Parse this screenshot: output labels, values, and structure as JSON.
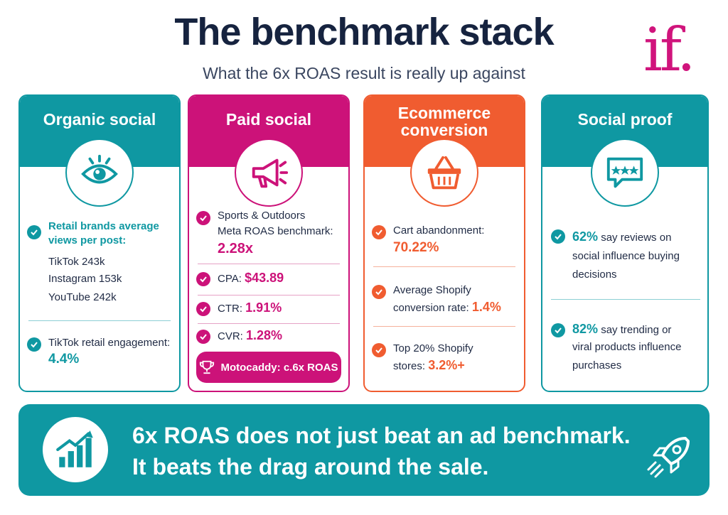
{
  "header": {
    "title": "The benchmark stack",
    "subtitle": "What the 6x ROAS result is really up against",
    "logo": "if."
  },
  "colors": {
    "teal": "#0f98a2",
    "magenta": "#cc1279",
    "orange": "#f05c30",
    "navy": "#16233f"
  },
  "cards": {
    "organic": {
      "title": "Organic social",
      "icon": "eye-icon",
      "views_heading": "Retail brands average views per post:",
      "lines": [
        "TikTok 243k",
        "Instagram 153k",
        "YouTube 242k"
      ],
      "engagement_label": "TikTok retail engagement:",
      "engagement_value": "4.4%"
    },
    "paid": {
      "title": "Paid social",
      "icon": "megaphone-icon",
      "roas_label_1": "Sports & Outdoors",
      "roas_label_2": "Meta ROAS benchmark:",
      "roas_value": "2.28x",
      "cpa_label": "CPA:",
      "cpa_value": "$43.89",
      "ctr_label": "CTR:",
      "ctr_value": "1.91%",
      "cvr_label": "CVR:",
      "cvr_value": "1.28%",
      "pill": "Motocaddy: c.6x ROAS"
    },
    "ecommerce": {
      "title_1": "Ecommerce",
      "title_2": "conversion",
      "icon": "basket-icon",
      "cart_label": "Cart abandonment:",
      "cart_value": "70.22%",
      "avg_label_1": "Average Shopify",
      "avg_label_2": "conversion rate:",
      "avg_value": "1.4%",
      "top_label_1": "Top 20% Shopify",
      "top_label_2": "stores:",
      "top_value": "3.2%+"
    },
    "social_proof": {
      "title": "Social proof",
      "icon": "review-stars-icon",
      "stat1_value": "62%",
      "stat1_text_1": "say reviews on",
      "stat1_text_2": "social influence buying",
      "stat1_text_3": "decisions",
      "stat2_value": "82%",
      "stat2_text_1": "say trending or",
      "stat2_text_2": "viral products influence",
      "stat2_text_3": "purchases"
    }
  },
  "banner": {
    "line1": "6x ROAS does not just beat an ad benchmark.",
    "line2": "It beats the drag around the sale.",
    "icon_left": "growth-chart-icon",
    "icon_right": "rocket-icon"
  }
}
